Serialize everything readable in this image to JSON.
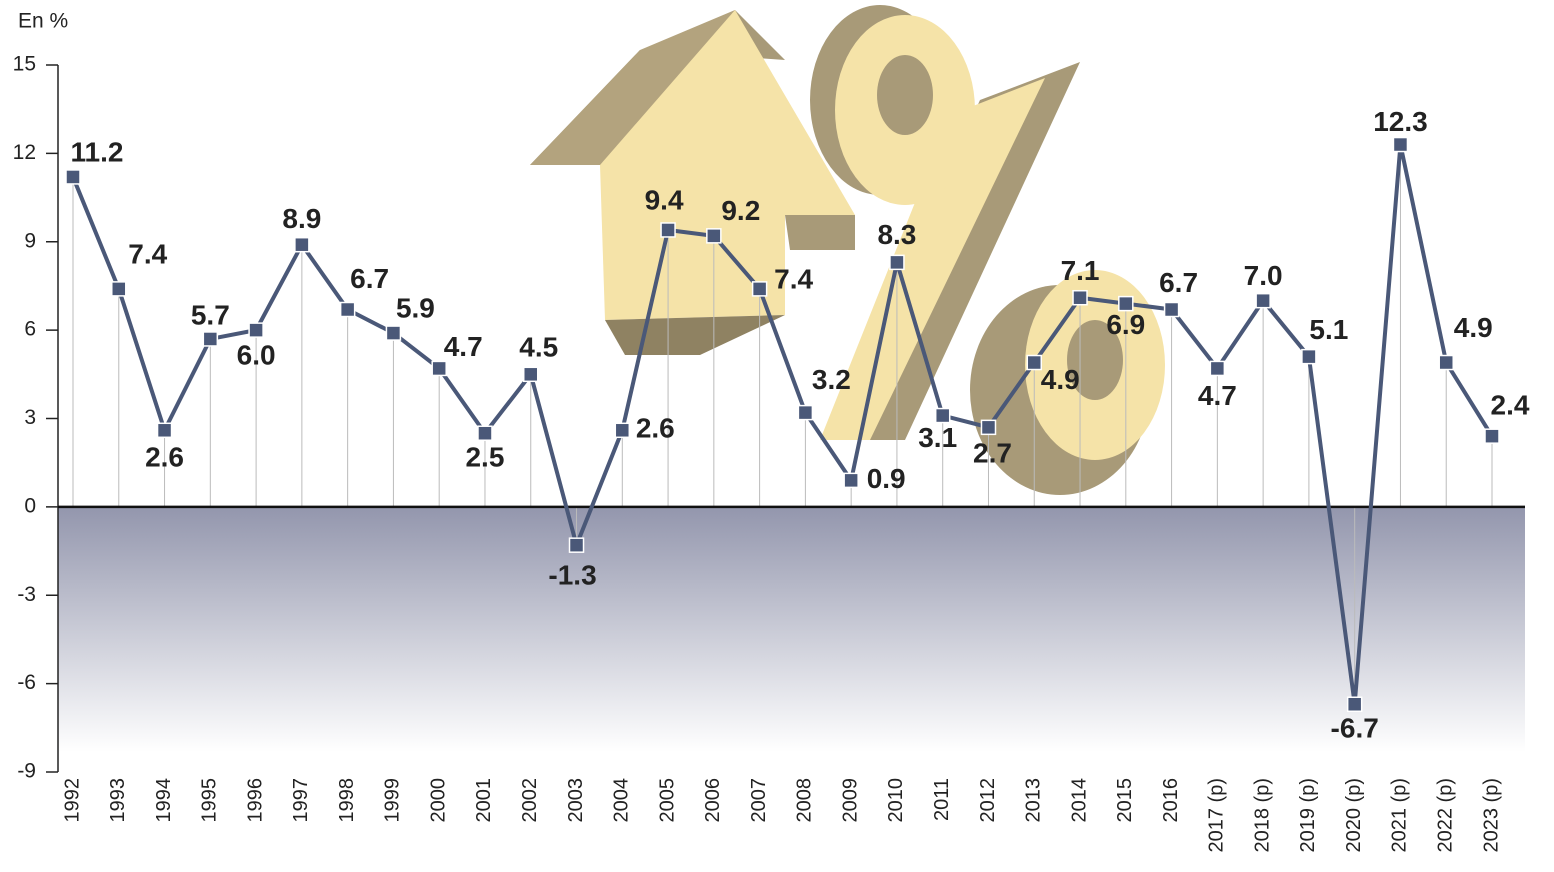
{
  "chart_data": {
    "type": "line",
    "y_axis_label": "En %",
    "categories": [
      "1992",
      "1993",
      "1994",
      "1995",
      "1996",
      "1997",
      "1998",
      "1999",
      "2000",
      "2001",
      "2002",
      "2003",
      "2004",
      "2005",
      "2006",
      "2007",
      "2008",
      "2009",
      "2010",
      "2011",
      "2012",
      "2013",
      "2014",
      "2015",
      "2016",
      "2017 (p)",
      "2018 (p)",
      "2019 (p)",
      "2020 (p)",
      "2021 (p)",
      "2022 (p)",
      "2023 (p)"
    ],
    "series": [
      {
        "color": "#4a5878",
        "values": [
          11.2,
          7.4,
          2.6,
          5.7,
          6.0,
          8.9,
          6.7,
          5.9,
          4.7,
          2.5,
          4.5,
          -1.3,
          2.6,
          9.4,
          9.2,
          7.4,
          3.2,
          0.9,
          8.3,
          3.1,
          2.7,
          4.9,
          7.1,
          6.9,
          6.7,
          4.7,
          7.0,
          5.1,
          -6.7,
          12.3,
          4.9,
          2.4
        ],
        "value_labels": [
          "11.2",
          "7.4",
          "2.6",
          "5.7",
          "6.0",
          "8.9",
          "6.7",
          "5.9",
          "4.7",
          "2.5",
          "4.5",
          "-1.3",
          "2.6",
          "9.4",
          "9.2",
          "7.4",
          "3.2",
          "0.9",
          "8.3",
          "3.1",
          "2.7",
          "4.9",
          "7.1",
          "6.9",
          "6.7",
          "4.7",
          "7.0",
          "5.1",
          "-6.7",
          "12.3",
          "4.9",
          "2.4"
        ]
      }
    ],
    "ylim": [
      -9,
      15
    ],
    "yticks": [
      -9,
      -6,
      -3,
      0,
      3,
      6,
      9,
      12,
      15
    ]
  }
}
